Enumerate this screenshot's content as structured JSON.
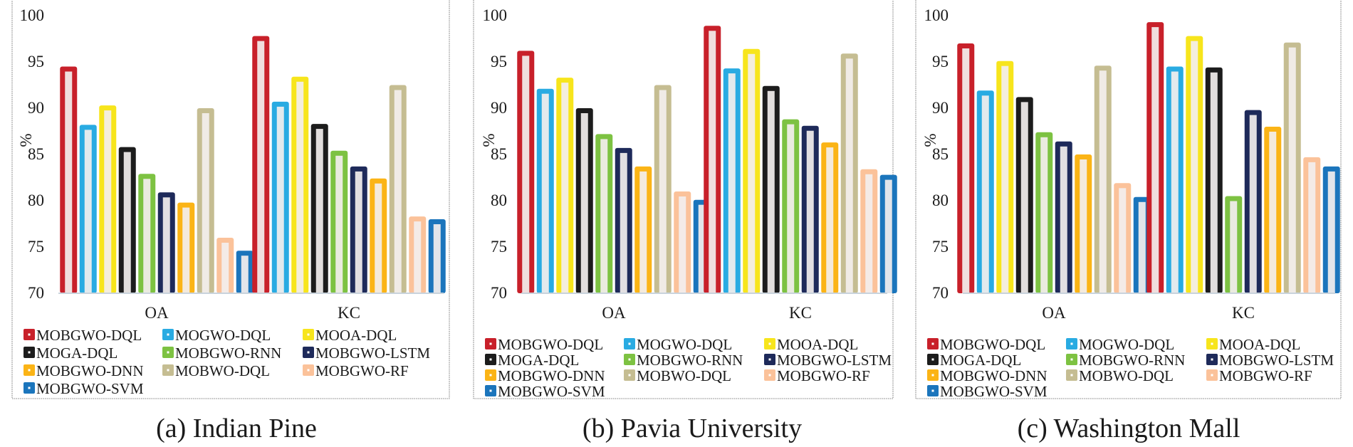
{
  "colors": {
    "MOBGWO-DQL": "#c8202a",
    "MOGWO-DQL": "#29abe2",
    "MOOA-DQL": "#f7e51c",
    "MOGA-DQL": "#1c1c1c",
    "MOBGWO-RNN": "#7dc242",
    "MOBGWO-LSTM": "#1e2a5a",
    "MOBGWO-DNN": "#fbb416",
    "MOBWO-DQL": "#c5bd92",
    "MOBGWO-RF": "#fbc29a",
    "MOBGWO-SVM": "#1b75bc"
  },
  "chart_data": [
    {
      "type": "bar",
      "caption": "(a) Indian Pine",
      "ylabel": "%",
      "ylim": [
        70,
        100
      ],
      "yticks": [
        "70",
        "75",
        "80",
        "85",
        "90",
        "95",
        "100"
      ],
      "categories": [
        "OA",
        "KC"
      ],
      "series": [
        {
          "name": "MOBGWO-DQL",
          "values": [
            94.5,
            97.8
          ]
        },
        {
          "name": "MOGWO-DQL",
          "values": [
            88.2,
            90.7
          ]
        },
        {
          "name": "MOOA-DQL",
          "values": [
            90.3,
            93.4
          ]
        },
        {
          "name": "MOGA-DQL",
          "values": [
            85.8,
            88.3
          ]
        },
        {
          "name": "MOBGWO-RNN",
          "values": [
            82.9,
            85.4
          ]
        },
        {
          "name": "MOBGWO-LSTM",
          "values": [
            80.9,
            83.7
          ]
        },
        {
          "name": "MOBGWO-DNN",
          "values": [
            79.8,
            82.4
          ]
        },
        {
          "name": "MOBWO-DQL",
          "values": [
            90.0,
            92.5
          ]
        },
        {
          "name": "MOBGWO-RF",
          "values": [
            76.0,
            78.3
          ]
        },
        {
          "name": "MOBGWO-SVM",
          "values": [
            74.6,
            78.0
          ]
        }
      ]
    },
    {
      "type": "bar",
      "caption": "(b) Pavia University",
      "ylabel": "%",
      "ylim": [
        70,
        100
      ],
      "yticks": [
        "70",
        "75",
        "80",
        "85",
        "90",
        "95",
        "100"
      ],
      "categories": [
        "OA",
        "KC"
      ],
      "series": [
        {
          "name": "MOBGWO-DQL",
          "values": [
            96.2,
            98.9
          ]
        },
        {
          "name": "MOGWO-DQL",
          "values": [
            92.1,
            94.3
          ]
        },
        {
          "name": "MOOA-DQL",
          "values": [
            93.3,
            96.4
          ]
        },
        {
          "name": "MOGA-DQL",
          "values": [
            90.0,
            92.4
          ]
        },
        {
          "name": "MOBGWO-RNN",
          "values": [
            87.2,
            88.8
          ]
        },
        {
          "name": "MOBGWO-LSTM",
          "values": [
            85.7,
            88.1
          ]
        },
        {
          "name": "MOBGWO-DNN",
          "values": [
            83.7,
            86.3
          ]
        },
        {
          "name": "MOBWO-DQL",
          "values": [
            92.5,
            95.9
          ]
        },
        {
          "name": "MOBGWO-RF",
          "values": [
            81.0,
            83.4
          ]
        },
        {
          "name": "MOBGWO-SVM",
          "values": [
            80.1,
            82.8
          ]
        }
      ]
    },
    {
      "type": "bar",
      "caption": "(c) Washington Mall",
      "ylabel": "%",
      "ylim": [
        70,
        100
      ],
      "yticks": [
        "70",
        "75",
        "80",
        "85",
        "90",
        "95",
        "100"
      ],
      "categories": [
        "OA",
        "KC"
      ],
      "series": [
        {
          "name": "MOBGWO-DQL",
          "values": [
            97.0,
            99.3
          ]
        },
        {
          "name": "MOGWO-DQL",
          "values": [
            91.9,
            94.5
          ]
        },
        {
          "name": "MOOA-DQL",
          "values": [
            95.1,
            97.8
          ]
        },
        {
          "name": "MOGA-DQL",
          "values": [
            91.2,
            94.4
          ]
        },
        {
          "name": "MOBGWO-RNN",
          "values": [
            87.4,
            80.5
          ]
        },
        {
          "name": "MOBGWO-LSTM",
          "values": [
            86.4,
            89.8
          ]
        },
        {
          "name": "MOBGWO-DNN",
          "values": [
            85.0,
            88.0
          ]
        },
        {
          "name": "MOBWO-DQL",
          "values": [
            94.6,
            97.1
          ]
        },
        {
          "name": "MOBGWO-RF",
          "values": [
            81.9,
            84.7
          ]
        },
        {
          "name": "MOBGWO-SVM",
          "values": [
            80.4,
            83.7
          ]
        }
      ]
    }
  ]
}
